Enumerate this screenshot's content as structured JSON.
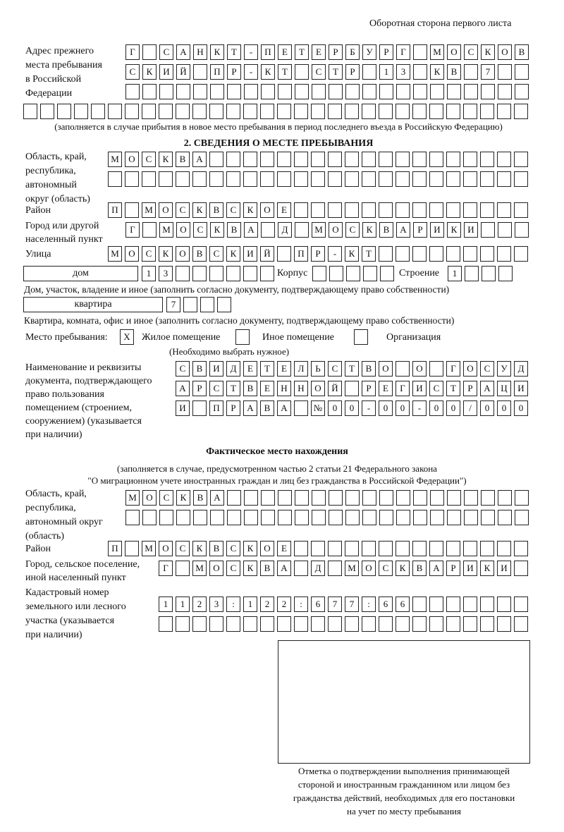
{
  "header": "Оборотная сторона первого листа",
  "prev_address": {
    "label": [
      "Адрес прежнего",
      "места пребывания",
      "в Российской",
      "Федерации"
    ],
    "rows": [
      [
        "Г",
        "",
        "С",
        "А",
        "Н",
        "К",
        "Т",
        "-",
        "П",
        "Е",
        "Т",
        "Е",
        "Р",
        "Б",
        "У",
        "Р",
        "Г",
        "",
        "М",
        "О",
        "С",
        "К",
        "О",
        "В"
      ],
      [
        "С",
        "К",
        "И",
        "Й",
        "",
        "П",
        "Р",
        "-",
        "К",
        "Т",
        "",
        "С",
        "Т",
        "Р",
        "",
        "1",
        "3",
        "",
        "К",
        "В",
        "",
        "7",
        "",
        ""
      ],
      [
        "",
        "",
        "",
        "",
        "",
        "",
        "",
        "",
        "",
        "",
        "",
        "",
        "",
        "",
        "",
        "",
        "",
        "",
        "",
        "",
        "",
        "",
        "",
        ""
      ],
      [
        "",
        "",
        "",
        "",
        "",
        "",
        "",
        "",
        "",
        "",
        "",
        "",
        "",
        "",
        "",
        "",
        "",
        "",
        "",
        "",
        "",
        "",
        "",
        "",
        "",
        "",
        "",
        "",
        "",
        ""
      ]
    ],
    "note": "(заполняется в случае прибытия в новое место пребывания в период последнего въезда в Российскую Федерацию)"
  },
  "section2": {
    "title": "2. СВЕДЕНИЯ О МЕСТЕ ПРЕБЫВАНИЯ",
    "region_label": [
      "Область, край,",
      "республика,",
      "автономный",
      "округ (область)"
    ],
    "region_rows": [
      [
        "М",
        "О",
        "С",
        "К",
        "В",
        "А",
        "",
        "",
        "",
        "",
        "",
        "",
        "",
        "",
        "",
        "",
        "",
        "",
        "",
        "",
        "",
        "",
        "",
        "",
        ""
      ],
      [
        "",
        "",
        "",
        "",
        "",
        "",
        "",
        "",
        "",
        "",
        "",
        "",
        "",
        "",
        "",
        "",
        "",
        "",
        "",
        "",
        "",
        "",
        "",
        "",
        ""
      ]
    ],
    "district_label": "Район",
    "district_row": [
      "П",
      "",
      "М",
      "О",
      "С",
      "К",
      "В",
      "С",
      "К",
      "О",
      "Е",
      "",
      "",
      "",
      "",
      "",
      "",
      "",
      "",
      "",
      "",
      "",
      "",
      "",
      ""
    ],
    "city_label": [
      "Город или другой",
      "населенный пункт"
    ],
    "city_row": [
      "Г",
      "",
      "М",
      "О",
      "С",
      "К",
      "В",
      "А",
      "",
      "Д",
      "",
      "М",
      "О",
      "С",
      "К",
      "В",
      "А",
      "Р",
      "И",
      "К",
      "И",
      "",
      "",
      ""
    ],
    "street_label": "Улица",
    "street_row": [
      "М",
      "О",
      "С",
      "К",
      "О",
      "В",
      "С",
      "К",
      "И",
      "Й",
      "",
      "П",
      "Р",
      "-",
      "К",
      "Т",
      "",
      "",
      "",
      "",
      "",
      "",
      "",
      "",
      ""
    ],
    "house_type": "дом",
    "house_cells": [
      "1",
      "3",
      "",
      "",
      "",
      "",
      "",
      ""
    ],
    "korpus_label": "Корпус",
    "korpus_cells": [
      "",
      "",
      "",
      "",
      ""
    ],
    "building_label": "Строение",
    "building_cells": [
      "1",
      "",
      "",
      ""
    ],
    "house_note": "Дом, участок, владение и иное (заполнить согласно документу, подтверждающему право собственности)",
    "flat_type": "квартира",
    "flat_cells": [
      "7",
      "",
      "",
      ""
    ],
    "flat_note": "Квартира, комната, офис и иное (заполнить согласно документу, подтверждающему право собственности)",
    "stay_label": "Место пребывания:",
    "stay_options": [
      {
        "mark": "X",
        "label": "Жилое помещение",
        "checked": true
      },
      {
        "mark": "",
        "label": "Иное помещение",
        "checked": false
      },
      {
        "mark": "",
        "label": "Организация",
        "checked": false
      }
    ],
    "stay_note": "(Необходимо выбрать нужное)",
    "doc_label": [
      "Наименование и реквизиты",
      "документа, подтверждающего",
      "право пользования",
      "помещением (строением,",
      "сооружением) (указывается",
      "при наличии)"
    ],
    "doc_rows": [
      [
        "С",
        "В",
        "И",
        "Д",
        "Е",
        "Т",
        "Е",
        "Л",
        "Ь",
        "С",
        "Т",
        "В",
        "О",
        "",
        "О",
        "",
        "Г",
        "О",
        "С",
        "У",
        "Д"
      ],
      [
        "А",
        "Р",
        "С",
        "Т",
        "В",
        "Е",
        "Н",
        "Н",
        "О",
        "Й",
        "",
        "Р",
        "Е",
        "Г",
        "И",
        "С",
        "Т",
        "Р",
        "А",
        "Ц",
        "И"
      ],
      [
        "И",
        "",
        "П",
        "Р",
        "А",
        "В",
        "А",
        "",
        "№",
        "0",
        "0",
        "-",
        "0",
        "0",
        "-",
        "0",
        "0",
        "/",
        "0",
        "0",
        "0"
      ]
    ]
  },
  "actual": {
    "title": "Фактическое место нахождения",
    "note": [
      "(заполняется в случае, предусмотренном частью 2 статьи 21 Федерального закона",
      "\"О миграционном учете иностранных граждан и лиц без гражданства в Российской Федерации\")"
    ],
    "region_label": [
      "Область, край,",
      "республика,",
      "автономный округ",
      "(область)"
    ],
    "region_rows": [
      [
        "М",
        "О",
        "С",
        "К",
        "В",
        "А",
        "",
        "",
        "",
        "",
        "",
        "",
        "",
        "",
        "",
        "",
        "",
        "",
        "",
        "",
        "",
        "",
        "",
        ""
      ],
      [
        "",
        "",
        "",
        "",
        "",
        "",
        "",
        "",
        "",
        "",
        "",
        "",
        "",
        "",
        "",
        "",
        "",
        "",
        "",
        "",
        "",
        "",
        "",
        ""
      ]
    ],
    "district_label": "Район",
    "district_row": [
      "П",
      "",
      "М",
      "О",
      "С",
      "К",
      "В",
      "С",
      "К",
      "О",
      "Е",
      "",
      "",
      "",
      "",
      "",
      "",
      "",
      "",
      "",
      "",
      "",
      "",
      "",
      ""
    ],
    "city_label": [
      "Город, сельское поселение,",
      "иной населенный пункт"
    ],
    "city_row": [
      "Г",
      "",
      "М",
      "О",
      "С",
      "К",
      "В",
      "А",
      "",
      "Д",
      "",
      "М",
      "О",
      "С",
      "К",
      "В",
      "А",
      "Р",
      "И",
      "К",
      "И",
      ""
    ],
    "cadastre_label": [
      "Кадастровый номер",
      "земельного или лесного",
      "участка (указывается",
      "при наличии)"
    ],
    "cadastre_rows": [
      [
        "1",
        "1",
        "2",
        "3",
        ":",
        "1",
        "2",
        "2",
        ":",
        "6",
        "7",
        "7",
        ":",
        "6",
        "6",
        "",
        "",
        "",
        "",
        "",
        "",
        ""
      ],
      [
        "",
        "",
        "",
        "",
        "",
        "",
        "",
        "",
        "",
        "",
        "",
        "",
        "",
        "",
        "",
        "",
        "",
        "",
        "",
        "",
        "",
        ""
      ]
    ]
  },
  "stamp_caption": [
    "Отметка о подтверждении выполнения принимающей",
    "стороной и иностранным гражданином или лицом без",
    "гражданства действий, необходимых для его постановки",
    "на учет по месту пребывания"
  ]
}
